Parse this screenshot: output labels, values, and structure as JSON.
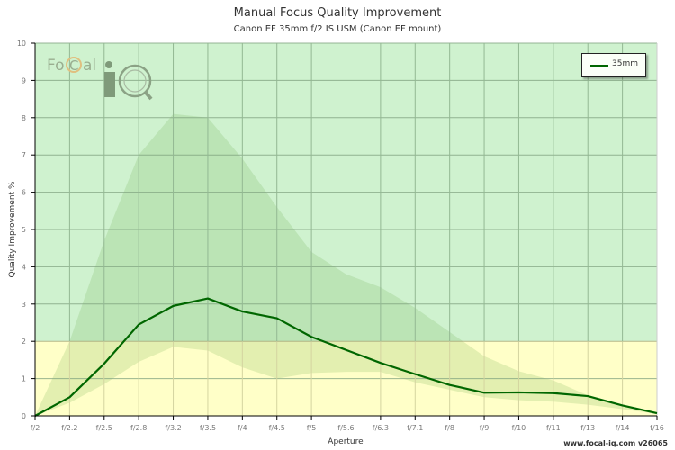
{
  "chart_data": {
    "type": "line",
    "title": "Manual Focus Quality Improvement",
    "subtitle": "Canon EF 35mm f/2 IS USM (Canon EF mount)",
    "xlabel": "Aperture",
    "ylabel": "Quality Improvement %",
    "ylim": [
      0,
      10
    ],
    "yticks": [
      0,
      1,
      2,
      3,
      4,
      5,
      6,
      7,
      8,
      9,
      10
    ],
    "grid": true,
    "legend_position": "top-right",
    "categories": [
      "f/2",
      "f/2.2",
      "f/2.5",
      "f/2.8",
      "f/3.2",
      "f/3.5",
      "f/4",
      "f/4.5",
      "f/5",
      "f/5.6",
      "f/6.3",
      "f/7.1",
      "f/8",
      "f/9",
      "f/10",
      "f/11",
      "f/13",
      "f/14",
      "f/16"
    ],
    "series": [
      {
        "name": "35mm",
        "color": "#006600",
        "values": [
          0,
          0.5,
          1.4,
          2.45,
          2.95,
          3.15,
          2.8,
          2.62,
          2.12,
          1.77,
          1.42,
          1.12,
          0.83,
          0.62,
          0.63,
          0.61,
          0.53,
          0.28,
          0.07
        ]
      }
    ],
    "range_band": {
      "upper": [
        0,
        2.0,
        4.7,
        7.0,
        8.1,
        8.0,
        6.9,
        5.6,
        4.4,
        3.8,
        3.45,
        2.9,
        2.25,
        1.6,
        1.2,
        0.95,
        0.55,
        0.3,
        0.1
      ],
      "lower": [
        0,
        0.35,
        0.85,
        1.45,
        1.85,
        1.75,
        1.3,
        1.0,
        1.15,
        1.18,
        1.18,
        0.9,
        0.7,
        0.5,
        0.42,
        0.38,
        0.3,
        0.18,
        0.05
      ]
    },
    "background_zones": [
      {
        "from": 0,
        "to": 2,
        "color": "#ffffc8"
      },
      {
        "from": 2,
        "to": 10,
        "color": "#cff2cf"
      }
    ]
  },
  "legend": {
    "items": [
      {
        "label": "35mm",
        "color": "#006600"
      }
    ]
  },
  "logo": {
    "text_focal": "FoCal",
    "text_iq": "iQ"
  },
  "footer": {
    "credit": "www.focal-iq.com  v26065"
  }
}
